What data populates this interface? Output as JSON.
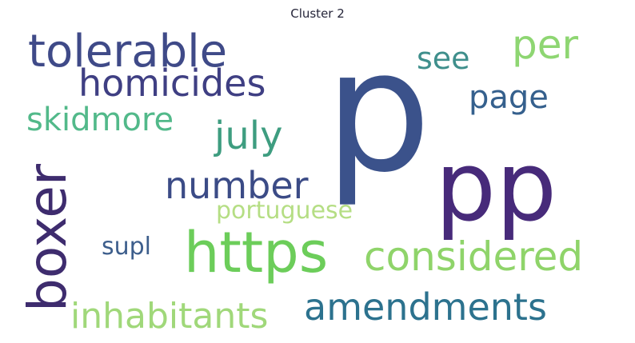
{
  "title": "Cluster 2",
  "words": [
    {
      "text": "p",
      "color": "#3b528b"
    },
    {
      "text": "pp",
      "color": "#472a7a"
    },
    {
      "text": "boxer",
      "color": "#3e2c6e"
    },
    {
      "text": "https",
      "color": "#6ccd5a"
    },
    {
      "text": "tolerable",
      "color": "#3f4a88"
    },
    {
      "text": "homicides",
      "color": "#3f3f83"
    },
    {
      "text": "considered",
      "color": "#8fd46a"
    },
    {
      "text": "amendments",
      "color": "#2c728e"
    },
    {
      "text": "inhabitants",
      "color": "#a0d87a"
    },
    {
      "text": "number",
      "color": "#3b4b86"
    },
    {
      "text": "july",
      "color": "#3e9d80"
    },
    {
      "text": "skidmore",
      "color": "#52b98a"
    },
    {
      "text": "per",
      "color": "#8ed672"
    },
    {
      "text": "page",
      "color": "#35608d"
    },
    {
      "text": "see",
      "color": "#3f8f8c"
    },
    {
      "text": "portuguese",
      "color": "#b5de84"
    },
    {
      "text": "supl",
      "color": "#3d5e8c"
    }
  ]
}
